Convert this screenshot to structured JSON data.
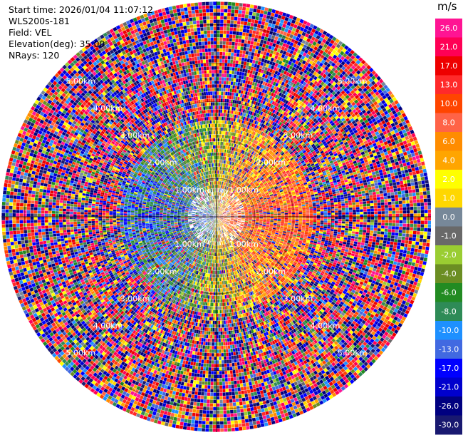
{
  "header": {
    "start_time": "Start time: 2026/01/04 11:07:12",
    "instrument": "WLS200s-181",
    "field": "Field: VEL",
    "elevation": "Elevation(deg): 35.00",
    "nrays": "NRays: 120"
  },
  "colorbar": {
    "unit": "m/s",
    "ticks": [
      "26.0",
      "21.0",
      "17.0",
      "13.0",
      "10.0",
      "8.0",
      "6.0",
      "4.0",
      "2.0",
      "1.0",
      "0.0",
      "-1.0",
      "-2.0",
      "-4.0",
      "-6.0",
      "-8.0",
      "-10.0",
      "-13.0",
      "-17.0",
      "-21.0",
      "-26.0",
      "-30.0"
    ],
    "bins": [
      {
        "label": "26.0",
        "color": "#ff1493"
      },
      {
        "label": "21.0",
        "color": "#ff0055"
      },
      {
        "label": "17.0",
        "color": "#ee0000"
      },
      {
        "label": "13.0",
        "color": "#ff2a2a"
      },
      {
        "label": "10.0",
        "color": "#ff4500"
      },
      {
        "label": "8.0",
        "color": "#ff6347"
      },
      {
        "label": "6.0",
        "color": "#ff8c00"
      },
      {
        "label": "4.0",
        "color": "#ffa500"
      },
      {
        "label": "2.0",
        "color": "#ffff00"
      },
      {
        "label": "1.0",
        "color": "#ffd700"
      },
      {
        "label": "0.0",
        "color": "#778899"
      },
      {
        "label": "-1.0",
        "color": "#696969"
      },
      {
        "label": "-2.0",
        "color": "#9acd32"
      },
      {
        "label": "-4.0",
        "color": "#6b8e23"
      },
      {
        "label": "-6.0",
        "color": "#228b22"
      },
      {
        "label": "-8.0",
        "color": "#2e8b57"
      },
      {
        "label": "-10.0",
        "color": "#1e90ff"
      },
      {
        "label": "-13.0",
        "color": "#4169e1"
      },
      {
        "label": "-17.0",
        "color": "#0000ff"
      },
      {
        "label": "-21.0",
        "color": "#0000cd"
      },
      {
        "label": "-26.0",
        "color": "#000080"
      },
      {
        "label": "-30.0",
        "color": "#191970"
      }
    ]
  },
  "chart_data": {
    "type": "heatmap",
    "projection": "polar PPI",
    "field": "VEL",
    "units": "m/s",
    "elevation_deg": 35.0,
    "n_rays": 120,
    "range_rings_km": [
      1.0,
      2.0,
      3.0,
      4.0,
      5.0
    ],
    "range_ring_labels": [
      "1.00km",
      "2.00km",
      "3.00km",
      "4.00km",
      "5.00km"
    ],
    "max_range_km": 5.6,
    "pattern_note": "noisy velocities everywhere; near field shows negative (blue/green) values on the west side and positive (red/orange) values on the east side",
    "near_field_west_mean_ms": -10,
    "near_field_east_mean_ms": 10
  }
}
